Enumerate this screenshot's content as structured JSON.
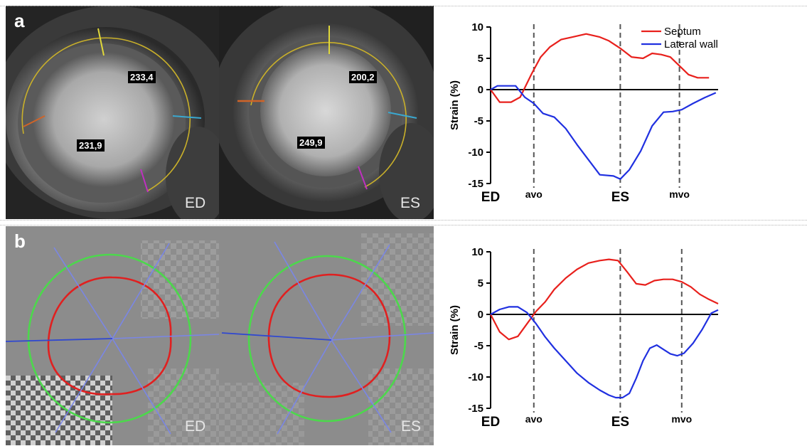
{
  "panel_a": {
    "letter": "a",
    "images": [
      {
        "frame": "ED",
        "labels": [
          "233,4",
          "231,9"
        ]
      },
      {
        "frame": "ES",
        "labels": [
          "200,2",
          "249,9"
        ]
      }
    ]
  },
  "panel_b": {
    "letter": "b",
    "images": [
      {
        "frame": "ED"
      },
      {
        "frame": "ES"
      }
    ]
  },
  "chart_data": [
    {
      "type": "line",
      "title": "",
      "xlabel": "",
      "ylabel": "Strain (%)",
      "ylim": [
        -15,
        10
      ],
      "yticks": [
        10,
        5,
        0,
        -5,
        -10,
        -15
      ],
      "xlim": [
        0,
        100
      ],
      "events": [
        {
          "label": "ED",
          "x": 0
        },
        {
          "label": "avo",
          "x": 19
        },
        {
          "label": "ES",
          "x": 57
        },
        {
          "label": "mvo",
          "x": 83
        }
      ],
      "legend": "top-right",
      "colors": {
        "Septum": "#e8201c",
        "Lateral wall": "#2030e0"
      },
      "series": [
        {
          "name": "Septum",
          "x": [
            0,
            4,
            9,
            13,
            18,
            22,
            26,
            31,
            36,
            42,
            48,
            52,
            57,
            62,
            67,
            71,
            75,
            79,
            83,
            87,
            91,
            96
          ],
          "y": [
            0,
            -2,
            -2,
            -1.2,
            2.5,
            5.2,
            6.8,
            8.0,
            8.4,
            8.9,
            8.4,
            7.8,
            6.6,
            5.2,
            5.0,
            5.8,
            5.6,
            5.2,
            3.8,
            2.4,
            1.9,
            1.9
          ]
        },
        {
          "name": "Lateral wall",
          "x": [
            0,
            3,
            7,
            11,
            15,
            19,
            23,
            28,
            33,
            38,
            43,
            48,
            54,
            57,
            61,
            66,
            71,
            76,
            80,
            84,
            89,
            94,
            99
          ],
          "y": [
            0,
            0.6,
            0.6,
            0.6,
            -1.2,
            -2.2,
            -3.8,
            -4.4,
            -6.2,
            -8.8,
            -11.2,
            -13.6,
            -13.8,
            -14.3,
            -12.8,
            -9.8,
            -5.8,
            -3.6,
            -3.5,
            -3.2,
            -2.2,
            -1.3,
            -0.5
          ]
        }
      ]
    },
    {
      "type": "line",
      "title": "",
      "xlabel": "",
      "ylabel": "Strain (%)",
      "ylim": [
        -15,
        10
      ],
      "yticks": [
        10,
        5,
        0,
        -5,
        -10,
        -15
      ],
      "xlim": [
        0,
        100
      ],
      "events": [
        {
          "label": "ED",
          "x": 0
        },
        {
          "label": "avo",
          "x": 19
        },
        {
          "label": "ES",
          "x": 57
        },
        {
          "label": "mvo",
          "x": 84
        }
      ],
      "legend": "none",
      "colors": {
        "Septum": "#e8201c",
        "Lateral wall": "#2030e0"
      },
      "series": [
        {
          "name": "Septum",
          "x": [
            0,
            4,
            8,
            12,
            16,
            20,
            24,
            28,
            33,
            38,
            43,
            48,
            52,
            56,
            60,
            64,
            68,
            72,
            76,
            80,
            84,
            88,
            92,
            96,
            100
          ],
          "y": [
            0,
            -2.8,
            -4.0,
            -3.5,
            -1.5,
            0.5,
            2.0,
            4.0,
            5.8,
            7.2,
            8.2,
            8.6,
            8.8,
            8.6,
            6.8,
            4.9,
            4.7,
            5.4,
            5.6,
            5.6,
            5.2,
            4.4,
            3.2,
            2.4,
            1.7
          ]
        },
        {
          "name": "Lateral wall",
          "x": [
            0,
            4,
            8,
            12,
            16,
            20,
            24,
            28,
            33,
            38,
            43,
            48,
            52,
            55,
            58,
            61,
            64,
            67,
            70,
            73,
            76,
            79,
            82,
            85,
            89,
            93,
            97,
            100
          ],
          "y": [
            0,
            0.8,
            1.2,
            1.2,
            0.3,
            -1.5,
            -3.6,
            -5.4,
            -7.4,
            -9.4,
            -10.9,
            -12.1,
            -12.9,
            -13.3,
            -13.3,
            -12.6,
            -10.2,
            -7.4,
            -5.4,
            -4.9,
            -5.6,
            -6.3,
            -6.6,
            -6.2,
            -4.6,
            -2.4,
            0.2,
            0.7
          ]
        }
      ]
    }
  ]
}
